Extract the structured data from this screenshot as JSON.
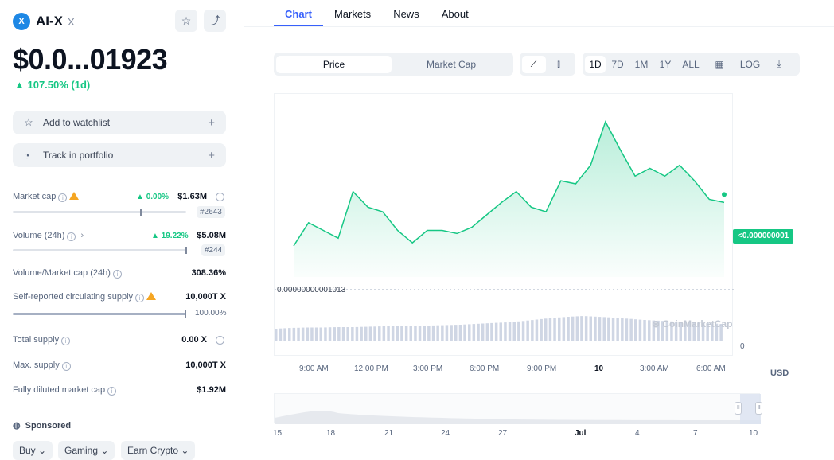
{
  "coin": {
    "name": "AI-X",
    "symbol": "X",
    "price": "$0.0...01923",
    "change": "107.50% (1d)",
    "logo": "X"
  },
  "actions": {
    "watchlist": "Add to watchlist",
    "portfolio": "Track in portfolio"
  },
  "stats": {
    "market_cap": {
      "label": "Market cap",
      "change": "0.00%",
      "value": "$1.63M",
      "rank": "#2643"
    },
    "volume": {
      "label": "Volume (24h)",
      "change": "19.22%",
      "value": "$5.08M",
      "rank": "#244"
    },
    "vol_mcap": {
      "label": "Volume/Market cap (24h)",
      "value": "308.36%"
    },
    "circ": {
      "label": "Self-reported circulating supply",
      "value": "10,000T X",
      "pct": "100.00%"
    },
    "total": {
      "label": "Total supply",
      "value": "0.00 X"
    },
    "max": {
      "label": "Max. supply",
      "value": "10,000T X"
    },
    "fdmc": {
      "label": "Fully diluted market cap",
      "value": "$1.92M"
    }
  },
  "sponsored": {
    "label": "Sponsored",
    "tags": [
      "Buy",
      "Gaming",
      "Earn Crypto"
    ]
  },
  "tabs": [
    "Chart",
    "Markets",
    "News",
    "About"
  ],
  "toggles": {
    "price": "Price",
    "market_cap": "Market Cap"
  },
  "ranges": [
    "1D",
    "7D",
    "1M",
    "1Y",
    "ALL"
  ],
  "log_label": "LOG",
  "chart": {
    "current_price_tag": "<0.000000001",
    "start_price_label": "0.00000000001013",
    "volume_zero": "0",
    "currency": "USD",
    "watermark": "CoinMarketCap",
    "x_ticks": [
      "9:00 AM",
      "12:00 PM",
      "3:00 PM",
      "6:00 PM",
      "9:00 PM",
      "10",
      "3:00 AM",
      "6:00 AM"
    ],
    "minimap_ticks": [
      "15",
      "18",
      "21",
      "24",
      "27",
      "Jul",
      "4",
      "7",
      "10"
    ]
  },
  "chart_data": {
    "type": "area",
    "ylabel": "USD",
    "series": [
      {
        "values": [
          0.2,
          0.35,
          0.3,
          0.25,
          0.55,
          0.45,
          0.42,
          0.3,
          0.22,
          0.3,
          0.3,
          0.28,
          0.32,
          0.4,
          0.48,
          0.55,
          0.45,
          0.42,
          0.62,
          0.6,
          0.72,
          1.0,
          0.82,
          0.65,
          0.7,
          0.65,
          0.72,
          0.62,
          0.5,
          0.48
        ]
      }
    ],
    "volume": [
      0.3,
      0.32,
      0.33,
      0.33,
      0.34,
      0.34,
      0.35,
      0.36,
      0.37,
      0.37,
      0.38,
      0.39,
      0.4,
      0.42,
      0.44,
      0.46,
      0.49,
      0.53,
      0.57,
      0.6,
      0.62,
      0.6,
      0.58,
      0.55,
      0.52,
      0.5,
      0.48,
      0.46,
      0.44,
      0.42
    ]
  },
  "colors": {
    "up": "#16c784",
    "accent": "#3861fb"
  }
}
